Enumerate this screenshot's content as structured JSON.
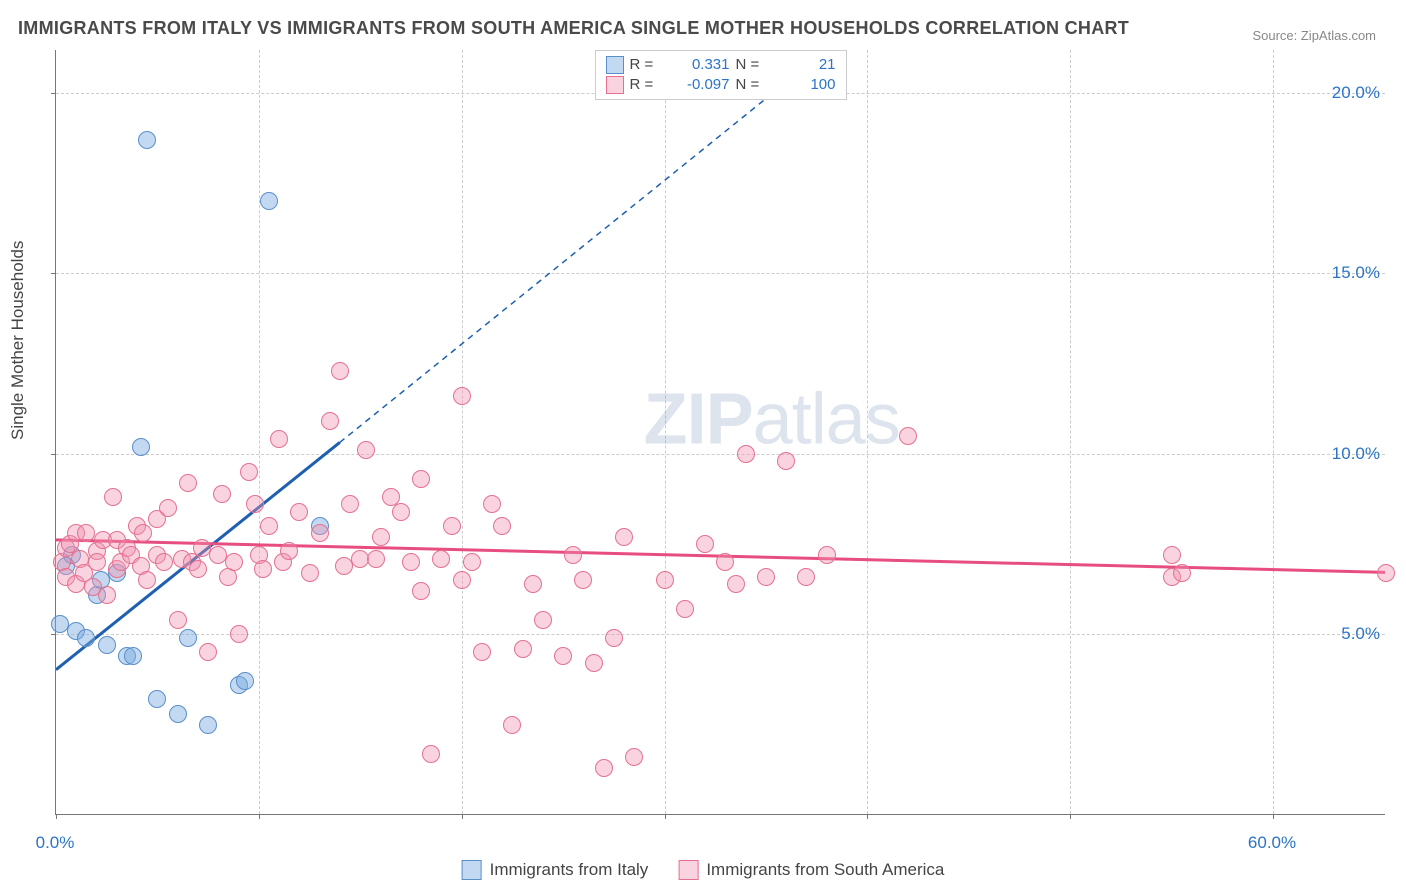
{
  "title": "IMMIGRANTS FROM ITALY VS IMMIGRANTS FROM SOUTH AMERICA SINGLE MOTHER HOUSEHOLDS CORRELATION CHART",
  "source": "Source: ZipAtlas.com",
  "watermark": {
    "zip": "ZIP",
    "atlas": "atlas"
  },
  "y_axis_title": "Single Mother Households",
  "plot": {
    "x_min": 0,
    "x_max": 65.57,
    "y_min": 0,
    "y_max": 21.18,
    "x_ticks": [
      0,
      10,
      20,
      30,
      40,
      50,
      60
    ],
    "y_ticks": [
      5,
      10,
      15,
      20
    ],
    "y_tick_labels": [
      "5.0%",
      "10.0%",
      "15.0%",
      "20.0%"
    ],
    "x_axis_end_labels": {
      "left": "0.0%",
      "right": "60.0%"
    },
    "grid_color": "#cccccc",
    "axis_color": "#777777",
    "tick_label_color": "#2b74c6"
  },
  "series": [
    {
      "id": "italy",
      "label": "Immigrants from Italy",
      "fill": "rgba(120,170,225,0.45)",
      "stroke": "#5a8fca",
      "stroke_width": 1.5,
      "marker_radius": 9,
      "trend_color": "#1e5fb0",
      "trend_solid": {
        "x1": 0,
        "y1": 4.0,
        "x2": 14.0,
        "y2": 10.3
      },
      "trend_dashed": {
        "x1": 14.0,
        "y1": 10.3,
        "x2": 38.0,
        "y2": 21.18
      },
      "r": "0.331",
      "n": "21",
      "points": [
        [
          0.2,
          5.3
        ],
        [
          0.5,
          6.9
        ],
        [
          0.8,
          7.2
        ],
        [
          1.0,
          5.1
        ],
        [
          1.5,
          4.9
        ],
        [
          2.0,
          6.1
        ],
        [
          2.2,
          6.5
        ],
        [
          2.5,
          4.7
        ],
        [
          3.0,
          6.7
        ],
        [
          3.5,
          4.4
        ],
        [
          3.8,
          4.4
        ],
        [
          4.2,
          10.2
        ],
        [
          4.5,
          18.7
        ],
        [
          5.0,
          3.2
        ],
        [
          6.0,
          2.8
        ],
        [
          6.5,
          4.9
        ],
        [
          7.5,
          2.5
        ],
        [
          9.0,
          3.6
        ],
        [
          9.3,
          3.7
        ],
        [
          10.5,
          17.0
        ],
        [
          13.0,
          8.0
        ]
      ]
    },
    {
      "id": "southam",
      "label": "Immigrants from South America",
      "fill": "rgba(240,145,175,0.40)",
      "stroke": "#e5718f",
      "stroke_width": 1.5,
      "marker_radius": 9,
      "trend_color": "#e84d80",
      "trend_solid": {
        "x1": 0,
        "y1": 7.6,
        "x2": 65.57,
        "y2": 6.7
      },
      "r": "-0.097",
      "n": "100",
      "points": [
        [
          0.3,
          7.0
        ],
        [
          0.5,
          7.4
        ],
        [
          0.5,
          6.6
        ],
        [
          0.7,
          7.5
        ],
        [
          1.0,
          7.8
        ],
        [
          1.0,
          6.4
        ],
        [
          1.2,
          7.1
        ],
        [
          1.4,
          6.7
        ],
        [
          1.5,
          7.8
        ],
        [
          1.8,
          6.3
        ],
        [
          2.0,
          7.3
        ],
        [
          2.0,
          7.0
        ],
        [
          2.3,
          7.6
        ],
        [
          2.5,
          6.1
        ],
        [
          2.8,
          8.8
        ],
        [
          3.0,
          6.8
        ],
        [
          3.0,
          7.6
        ],
        [
          3.2,
          7.0
        ],
        [
          3.5,
          7.4
        ],
        [
          3.7,
          7.2
        ],
        [
          4.0,
          8.0
        ],
        [
          4.2,
          6.9
        ],
        [
          4.3,
          7.8
        ],
        [
          4.5,
          6.5
        ],
        [
          5.0,
          8.2
        ],
        [
          5.0,
          7.2
        ],
        [
          5.3,
          7.0
        ],
        [
          5.5,
          8.5
        ],
        [
          6.0,
          5.4
        ],
        [
          6.2,
          7.1
        ],
        [
          6.5,
          9.2
        ],
        [
          6.7,
          7.0
        ],
        [
          7.0,
          6.8
        ],
        [
          7.2,
          7.4
        ],
        [
          7.5,
          4.5
        ],
        [
          8.0,
          7.2
        ],
        [
          8.2,
          8.9
        ],
        [
          8.5,
          6.6
        ],
        [
          8.8,
          7.0
        ],
        [
          9.0,
          5.0
        ],
        [
          9.5,
          9.5
        ],
        [
          9.8,
          8.6
        ],
        [
          10.0,
          7.2
        ],
        [
          10.2,
          6.8
        ],
        [
          10.5,
          8.0
        ],
        [
          11.0,
          10.4
        ],
        [
          11.2,
          7.0
        ],
        [
          11.5,
          7.3
        ],
        [
          12.0,
          8.4
        ],
        [
          12.5,
          6.7
        ],
        [
          13.0,
          7.8
        ],
        [
          13.5,
          10.9
        ],
        [
          14.0,
          12.3
        ],
        [
          14.2,
          6.9
        ],
        [
          14.5,
          8.6
        ],
        [
          15.0,
          7.1
        ],
        [
          15.3,
          10.1
        ],
        [
          15.8,
          7.1
        ],
        [
          16.0,
          7.7
        ],
        [
          16.5,
          8.8
        ],
        [
          17.0,
          8.4
        ],
        [
          17.5,
          7.0
        ],
        [
          18.0,
          9.3
        ],
        [
          18.0,
          6.2
        ],
        [
          18.5,
          1.7
        ],
        [
          19.0,
          7.1
        ],
        [
          19.5,
          8.0
        ],
        [
          20.0,
          6.5
        ],
        [
          20.0,
          11.6
        ],
        [
          20.5,
          7.0
        ],
        [
          21.0,
          4.5
        ],
        [
          21.5,
          8.6
        ],
        [
          22.0,
          8.0
        ],
        [
          22.5,
          2.5
        ],
        [
          23.0,
          4.6
        ],
        [
          23.5,
          6.4
        ],
        [
          24.0,
          5.4
        ],
        [
          25.0,
          4.4
        ],
        [
          25.5,
          7.2
        ],
        [
          26.0,
          6.5
        ],
        [
          26.5,
          4.2
        ],
        [
          27.0,
          1.3
        ],
        [
          27.5,
          4.9
        ],
        [
          28.0,
          7.7
        ],
        [
          28.5,
          1.6
        ],
        [
          30.0,
          6.5
        ],
        [
          31.0,
          5.7
        ],
        [
          32.0,
          7.5
        ],
        [
          33.0,
          7.0
        ],
        [
          33.5,
          6.4
        ],
        [
          34.0,
          10.0
        ],
        [
          35.0,
          6.6
        ],
        [
          36.0,
          9.8
        ],
        [
          37.0,
          6.6
        ],
        [
          38.0,
          7.2
        ],
        [
          42.0,
          10.5
        ],
        [
          55.0,
          7.2
        ],
        [
          55.0,
          6.6
        ],
        [
          55.5,
          6.7
        ],
        [
          65.57,
          6.7
        ]
      ]
    }
  ],
  "legend_top": {
    "r_label": "R =",
    "n_label": "N ="
  },
  "legend_bottom": {}
}
